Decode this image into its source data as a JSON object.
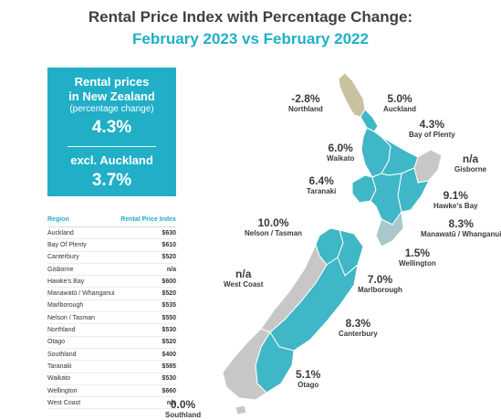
{
  "title_line1": "Rental Price Index with Percentage Change:",
  "title_line2": "February 2023 vs February 2022",
  "colors": {
    "accent": "#20afc7",
    "increase": "#3fb7c6",
    "decrease": "#c9c2a0",
    "no_data": "#c7c7c7",
    "text": "#404040"
  },
  "callout": {
    "line1": "Rental prices",
    "line2": "in New Zealand",
    "subtitle": "(percentage change)",
    "value": "4.3%",
    "excl_label": "excl. Auckland",
    "excl_value": "3.7%"
  },
  "table": {
    "headers": [
      "Region",
      "Rental Price Index"
    ],
    "rows": [
      [
        "Auckland",
        "$630"
      ],
      [
        "Bay Of Plenty",
        "$610"
      ],
      [
        "Canterbury",
        "$520"
      ],
      [
        "Gisborne",
        "n/a"
      ],
      [
        "Hawke's Bay",
        "$600"
      ],
      [
        "Manawatū / Whanganui",
        "$520"
      ],
      [
        "Marlborough",
        "$535"
      ],
      [
        "Nelson / Tasman",
        "$550"
      ],
      [
        "Northland",
        "$530"
      ],
      [
        "Otago",
        "$520"
      ],
      [
        "Southland",
        "$400"
      ],
      [
        "Taranaki",
        "$585"
      ],
      [
        "Waikato",
        "$530"
      ],
      [
        "Wellington",
        "$660"
      ],
      [
        "West Coast",
        "n/a"
      ]
    ]
  },
  "regions": {
    "northland": {
      "pct": "-2.8%",
      "name": "Northland"
    },
    "auckland": {
      "pct": "5.0%",
      "name": "Auckland"
    },
    "bay_of_plenty": {
      "pct": "4.3%",
      "name": "Bay of Plenty"
    },
    "waikato": {
      "pct": "6.0%",
      "name": "Waikato"
    },
    "gisborne": {
      "pct": "n/a",
      "name": "Gisborne"
    },
    "taranaki": {
      "pct": "6.4%",
      "name": "Taranaki"
    },
    "hawkes_bay": {
      "pct": "9.1%",
      "name": "Hawke's Bay"
    },
    "manawatu": {
      "pct": "8.3%",
      "name": "Manawatū / Whanganui"
    },
    "nelson": {
      "pct": "10.0%",
      "name": "Nelson / Tasman"
    },
    "wellington": {
      "pct": "1.5%",
      "name": "Wellington"
    },
    "west_coast": {
      "pct": "n/a",
      "name": "West Coast"
    },
    "marlborough": {
      "pct": "7.0%",
      "name": "Marlborough"
    },
    "canterbury": {
      "pct": "8.3%",
      "name": "Canterbury"
    },
    "otago": {
      "pct": "5.1%",
      "name": "Otago"
    },
    "southland": {
      "pct": "0.0%",
      "name": "Southland"
    }
  }
}
